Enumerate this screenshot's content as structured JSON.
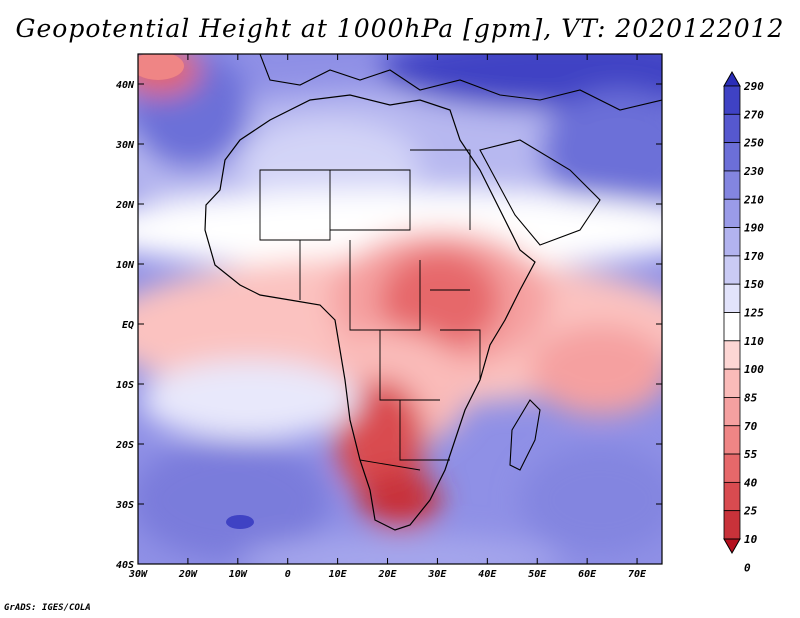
{
  "chart_data": {
    "type": "heatmap",
    "title": "Geopotential Height at 1000hPa [gpm], VT: 2020122012",
    "x_ticks": [
      "30W",
      "20W",
      "10W",
      "0",
      "10E",
      "20E",
      "30E",
      "40E",
      "50E",
      "60E",
      "70E"
    ],
    "y_ticks": [
      "40N",
      "30N",
      "20N",
      "10N",
      "EQ",
      "10S",
      "20S",
      "30S",
      "40S"
    ],
    "lon_range": [
      -30,
      75
    ],
    "lat_range": [
      -40,
      45
    ],
    "colorbar": {
      "levels": [
        "0",
        "10",
        "25",
        "40",
        "55",
        "70",
        "85",
        "100",
        "110",
        "125",
        "150",
        "170",
        "190",
        "210",
        "230",
        "250",
        "270",
        "290"
      ],
      "colors": [
        "#b40f1e",
        "#c8323a",
        "#d94b50",
        "#e6686a",
        "#ef8585",
        "#f5a0a0",
        "#fabbb9",
        "#fdd6d4",
        "#ffffff",
        "#e2e3fb",
        "#cacbf5",
        "#b2b3ef",
        "#9a9be8",
        "#8385e0",
        "#6c6fd8",
        "#5658cf",
        "#3f42c4",
        "#2a2db8"
      ]
    },
    "footer": "GrADS: IGES/COLA"
  }
}
